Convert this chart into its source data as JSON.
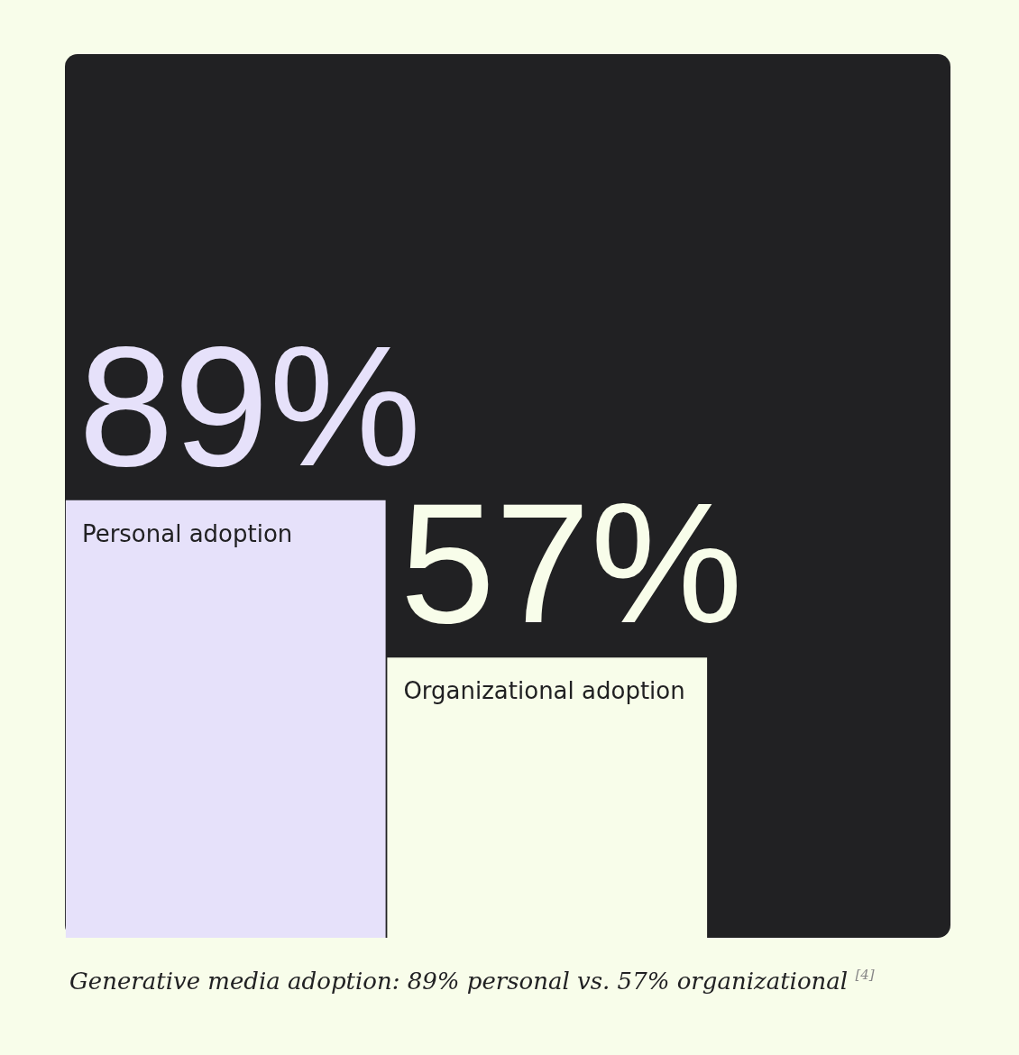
{
  "chart_data": {
    "type": "bar",
    "categories": [
      "Personal adoption",
      "Organizational adoption"
    ],
    "values": [
      89,
      57
    ],
    "value_labels": [
      "89%",
      "57%"
    ],
    "colors": [
      "#e6e1fa",
      "#f8fdea"
    ],
    "annotations": [
      "Generative media adoption: 89% personal vs. 57% organizational $^{[4]}$"
    ]
  }
}
